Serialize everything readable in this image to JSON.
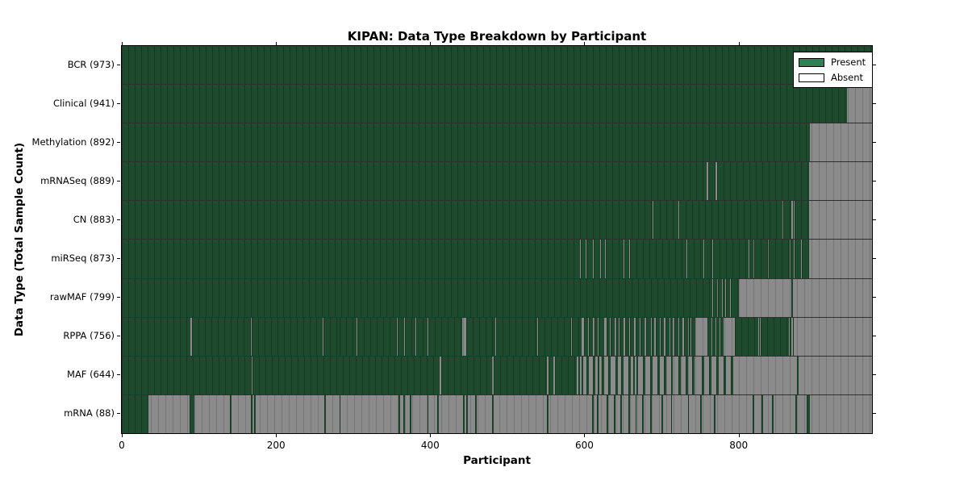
{
  "chart_data": {
    "type": "heatmap",
    "title": "KIPAN: Data Type Breakdown by Participant",
    "xlabel": "Participant",
    "ylabel": "Data Type (Total Sample Count)",
    "x_max": 973,
    "x_ticks": [
      0,
      200,
      400,
      600,
      800
    ],
    "grid": false,
    "legend_position": "upper right",
    "colors": {
      "present_fill": "#1e4b2d",
      "absent_fill": "#8b8b8b",
      "legend_present_swatch": "#2e8152",
      "legend_absent_swatch": "#ffffff"
    },
    "legend": [
      {
        "label": "Present",
        "swatch": "#2e8152"
      },
      {
        "label": "Absent",
        "swatch": "#ffffff"
      }
    ],
    "rows": [
      {
        "label": "BCR (973)",
        "datatype": "BCR",
        "total_sample_count": 973,
        "present_segments": [
          [
            0,
            973
          ]
        ]
      },
      {
        "label": "Clinical (941)",
        "datatype": "Clinical",
        "total_sample_count": 941,
        "present_segments": [
          [
            0,
            941
          ]
        ]
      },
      {
        "label": "Methylation (892)",
        "datatype": "Methylation",
        "total_sample_count": 892,
        "present_segments": [
          [
            0,
            892
          ]
        ]
      },
      {
        "label": "mRNASeq (889)",
        "datatype": "mRNASeq",
        "total_sample_count": 889,
        "present_segments": [
          [
            0,
            759
          ],
          [
            761,
            770
          ],
          [
            772,
            891
          ]
        ]
      },
      {
        "label": "CN (883)",
        "datatype": "CN",
        "total_sample_count": 883,
        "present_segments": [
          [
            0,
            688
          ],
          [
            689,
            722
          ],
          [
            723,
            857
          ],
          [
            858,
            868
          ],
          [
            870,
            872
          ],
          [
            873,
            891
          ]
        ]
      },
      {
        "label": "miRSeq (873)",
        "datatype": "miRSeq",
        "total_sample_count": 873,
        "present_segments": [
          [
            0,
            594
          ],
          [
            595,
            602
          ],
          [
            603,
            611
          ],
          [
            612,
            620
          ],
          [
            621,
            627
          ],
          [
            628,
            651
          ],
          [
            652,
            658
          ],
          [
            659,
            732
          ],
          [
            733,
            754
          ],
          [
            755,
            766
          ],
          [
            767,
            813
          ],
          [
            814,
            819
          ],
          [
            820,
            838
          ],
          [
            839,
            866
          ],
          [
            867,
            872
          ],
          [
            873,
            881
          ],
          [
            882,
            891
          ]
        ]
      },
      {
        "label": "rawMAF (799)",
        "datatype": "rawMAF",
        "total_sample_count": 799,
        "present_segments": [
          [
            0,
            766
          ],
          [
            767,
            772
          ],
          [
            773,
            778
          ],
          [
            779,
            783
          ],
          [
            784,
            789
          ],
          [
            790,
            800
          ],
          [
            868,
            870
          ]
        ]
      },
      {
        "label": "RPPA (756)",
        "datatype": "RPPA",
        "total_sample_count": 756,
        "present_segments": [
          [
            0,
            89
          ],
          [
            91,
            167
          ],
          [
            168,
            261
          ],
          [
            262,
            282
          ],
          [
            283,
            304
          ],
          [
            305,
            357
          ],
          [
            358,
            366
          ],
          [
            367,
            381
          ],
          [
            382,
            397
          ],
          [
            398,
            442
          ],
          [
            447,
            484
          ],
          [
            485,
            539
          ],
          [
            540,
            583
          ],
          [
            584,
            596
          ],
          [
            599,
            605
          ],
          [
            606,
            611
          ],
          [
            613,
            617
          ],
          [
            618,
            626
          ],
          [
            629,
            633
          ],
          [
            634,
            639
          ],
          [
            641,
            645
          ],
          [
            646,
            651
          ],
          [
            653,
            658
          ],
          [
            659,
            664
          ],
          [
            666,
            672
          ],
          [
            673,
            678
          ],
          [
            680,
            686
          ],
          [
            687,
            691
          ],
          [
            693,
            698
          ],
          [
            699,
            703
          ],
          [
            705,
            710
          ],
          [
            711,
            715
          ],
          [
            717,
            722
          ],
          [
            723,
            727
          ],
          [
            729,
            734
          ],
          [
            735,
            738
          ],
          [
            739,
            744
          ],
          [
            760,
            765
          ],
          [
            766,
            770
          ],
          [
            771,
            775
          ],
          [
            776,
            780
          ],
          [
            795,
            825
          ],
          [
            826,
            828
          ],
          [
            829,
            865
          ],
          [
            866,
            868
          ],
          [
            870,
            872
          ]
        ]
      },
      {
        "label": "MAF (644)",
        "datatype": "MAF",
        "total_sample_count": 644,
        "present_segments": [
          [
            0,
            168
          ],
          [
            170,
            412
          ],
          [
            414,
            480
          ],
          [
            482,
            551
          ],
          [
            553,
            560
          ],
          [
            562,
            590
          ],
          [
            592,
            594
          ],
          [
            596,
            598
          ],
          [
            603,
            606
          ],
          [
            611,
            614
          ],
          [
            617,
            619
          ],
          [
            623,
            626
          ],
          [
            631,
            634
          ],
          [
            640,
            643
          ],
          [
            648,
            651
          ],
          [
            657,
            660
          ],
          [
            663,
            665
          ],
          [
            668,
            670
          ],
          [
            676,
            679
          ],
          [
            685,
            688
          ],
          [
            695,
            698
          ],
          [
            703,
            706
          ],
          [
            712,
            715
          ],
          [
            722,
            725
          ],
          [
            731,
            734
          ],
          [
            740,
            743
          ],
          [
            752,
            755
          ],
          [
            762,
            765
          ],
          [
            771,
            774
          ],
          [
            781,
            784
          ],
          [
            790,
            793
          ],
          [
            876,
            878
          ]
        ]
      },
      {
        "label": "mRNA (88)",
        "datatype": "mRNA",
        "total_sample_count": 88,
        "present_segments": [
          [
            0,
            34
          ],
          [
            88,
            94
          ],
          [
            140,
            142
          ],
          [
            167,
            169
          ],
          [
            172,
            174
          ],
          [
            263,
            265
          ],
          [
            282,
            284
          ],
          [
            359,
            361
          ],
          [
            365,
            367
          ],
          [
            374,
            376
          ],
          [
            396,
            398
          ],
          [
            409,
            411
          ],
          [
            443,
            445
          ],
          [
            447,
            449
          ],
          [
            458,
            460
          ],
          [
            480,
            482
          ],
          [
            551,
            553
          ],
          [
            610,
            612
          ],
          [
            616,
            618
          ],
          [
            629,
            631
          ],
          [
            638,
            640
          ],
          [
            647,
            649
          ],
          [
            657,
            659
          ],
          [
            666,
            668
          ],
          [
            675,
            677
          ],
          [
            685,
            687
          ],
          [
            700,
            702
          ],
          [
            712,
            714
          ],
          [
            734,
            736
          ],
          [
            750,
            752
          ],
          [
            768,
            770
          ],
          [
            818,
            820
          ],
          [
            830,
            832
          ],
          [
            843,
            845
          ],
          [
            874,
            876
          ],
          [
            888,
            892
          ]
        ]
      }
    ]
  }
}
